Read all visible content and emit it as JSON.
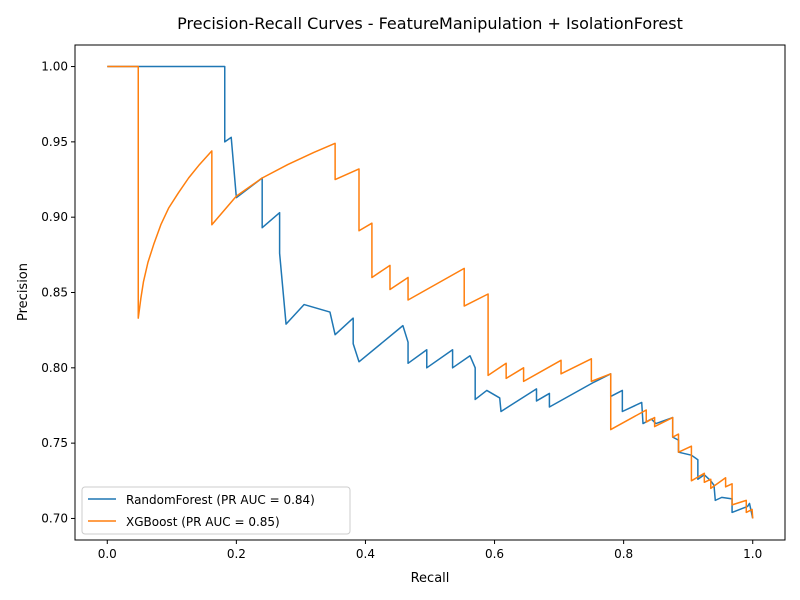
{
  "chart_data": {
    "type": "line",
    "title": "Precision-Recall Curves - FeatureManipulation + IsolationForest",
    "xlabel": "Recall",
    "ylabel": "Precision",
    "xlim": [
      -0.05,
      1.05
    ],
    "ylim": [
      0.6857,
      1.0143
    ],
    "xticks": [
      0.0,
      0.2,
      0.4,
      0.6,
      0.8,
      1.0
    ],
    "xtick_labels": [
      "0.0",
      "0.2",
      "0.4",
      "0.6",
      "0.8",
      "1.0"
    ],
    "yticks": [
      0.7,
      0.75,
      0.8,
      0.85,
      0.9,
      0.95,
      1.0
    ],
    "ytick_labels": [
      "0.70",
      "0.75",
      "0.80",
      "0.85",
      "0.90",
      "0.95",
      "1.00"
    ],
    "grid": false,
    "legend_position": "lower-left",
    "series": [
      {
        "name": "RandomForest (PR AUC = 0.84)",
        "color": "#1f77b4",
        "points": [
          [
            0.0,
            1.0
          ],
          [
            0.182,
            1.0
          ],
          [
            0.182,
            0.95
          ],
          [
            0.192,
            0.953
          ],
          [
            0.2,
            0.913
          ],
          [
            0.24,
            0.926
          ],
          [
            0.24,
            0.893
          ],
          [
            0.267,
            0.903
          ],
          [
            0.267,
            0.876
          ],
          [
            0.277,
            0.829
          ],
          [
            0.305,
            0.842
          ],
          [
            0.345,
            0.837
          ],
          [
            0.353,
            0.822
          ],
          [
            0.381,
            0.833
          ],
          [
            0.381,
            0.816
          ],
          [
            0.39,
            0.804
          ],
          [
            0.458,
            0.828
          ],
          [
            0.466,
            0.817
          ],
          [
            0.466,
            0.803
          ],
          [
            0.495,
            0.812
          ],
          [
            0.495,
            0.8
          ],
          [
            0.535,
            0.812
          ],
          [
            0.535,
            0.8
          ],
          [
            0.562,
            0.808
          ],
          [
            0.57,
            0.8
          ],
          [
            0.57,
            0.779
          ],
          [
            0.588,
            0.785
          ],
          [
            0.608,
            0.78
          ],
          [
            0.61,
            0.771
          ],
          [
            0.665,
            0.786
          ],
          [
            0.665,
            0.778
          ],
          [
            0.685,
            0.783
          ],
          [
            0.685,
            0.774
          ],
          [
            0.752,
            0.79
          ],
          [
            0.78,
            0.796
          ],
          [
            0.78,
            0.781
          ],
          [
            0.798,
            0.785
          ],
          [
            0.798,
            0.771
          ],
          [
            0.828,
            0.777
          ],
          [
            0.83,
            0.763
          ],
          [
            0.843,
            0.766
          ],
          [
            0.85,
            0.763
          ],
          [
            0.876,
            0.767
          ],
          [
            0.876,
            0.754
          ],
          [
            0.885,
            0.752
          ],
          [
            0.885,
            0.744
          ],
          [
            0.905,
            0.742
          ],
          [
            0.915,
            0.739
          ],
          [
            0.915,
            0.726
          ],
          [
            0.925,
            0.729
          ],
          [
            0.935,
            0.725
          ],
          [
            0.94,
            0.722
          ],
          [
            0.942,
            0.712
          ],
          [
            0.952,
            0.714
          ],
          [
            0.968,
            0.713
          ],
          [
            0.968,
            0.704
          ],
          [
            0.992,
            0.708
          ],
          [
            0.995,
            0.71
          ],
          [
            1.0,
            0.7
          ]
        ]
      },
      {
        "name": "XGBoost (PR AUC = 0.85)",
        "color": "#ff7f0e",
        "points": [
          [
            0.0,
            1.0
          ],
          [
            0.048,
            1.0
          ],
          [
            0.048,
            0.833
          ],
          [
            0.052,
            0.846
          ],
          [
            0.056,
            0.857
          ],
          [
            0.063,
            0.87
          ],
          [
            0.072,
            0.882
          ],
          [
            0.083,
            0.895
          ],
          [
            0.095,
            0.906
          ],
          [
            0.11,
            0.916
          ],
          [
            0.126,
            0.926
          ],
          [
            0.143,
            0.935
          ],
          [
            0.162,
            0.944
          ],
          [
            0.162,
            0.895
          ],
          [
            0.2,
            0.914
          ],
          [
            0.24,
            0.926
          ],
          [
            0.28,
            0.935
          ],
          [
            0.32,
            0.943
          ],
          [
            0.353,
            0.949
          ],
          [
            0.353,
            0.925
          ],
          [
            0.39,
            0.932
          ],
          [
            0.39,
            0.891
          ],
          [
            0.41,
            0.896
          ],
          [
            0.41,
            0.86
          ],
          [
            0.438,
            0.868
          ],
          [
            0.438,
            0.852
          ],
          [
            0.466,
            0.86
          ],
          [
            0.466,
            0.845
          ],
          [
            0.553,
            0.866
          ],
          [
            0.553,
            0.841
          ],
          [
            0.59,
            0.849
          ],
          [
            0.59,
            0.795
          ],
          [
            0.618,
            0.803
          ],
          [
            0.618,
            0.793
          ],
          [
            0.645,
            0.8
          ],
          [
            0.645,
            0.791
          ],
          [
            0.703,
            0.805
          ],
          [
            0.703,
            0.796
          ],
          [
            0.75,
            0.806
          ],
          [
            0.75,
            0.791
          ],
          [
            0.78,
            0.796
          ],
          [
            0.78,
            0.759
          ],
          [
            0.835,
            0.772
          ],
          [
            0.835,
            0.764
          ],
          [
            0.848,
            0.767
          ],
          [
            0.848,
            0.761
          ],
          [
            0.876,
            0.767
          ],
          [
            0.876,
            0.754
          ],
          [
            0.885,
            0.756
          ],
          [
            0.885,
            0.744
          ],
          [
            0.905,
            0.748
          ],
          [
            0.905,
            0.725
          ],
          [
            0.925,
            0.73
          ],
          [
            0.925,
            0.724
          ],
          [
            0.935,
            0.726
          ],
          [
            0.935,
            0.72
          ],
          [
            0.958,
            0.727
          ],
          [
            0.958,
            0.721
          ],
          [
            0.968,
            0.723
          ],
          [
            0.968,
            0.709
          ],
          [
            0.99,
            0.712
          ],
          [
            0.99,
            0.704
          ],
          [
            0.999,
            0.706
          ],
          [
            1.0,
            0.7
          ]
        ]
      }
    ]
  }
}
